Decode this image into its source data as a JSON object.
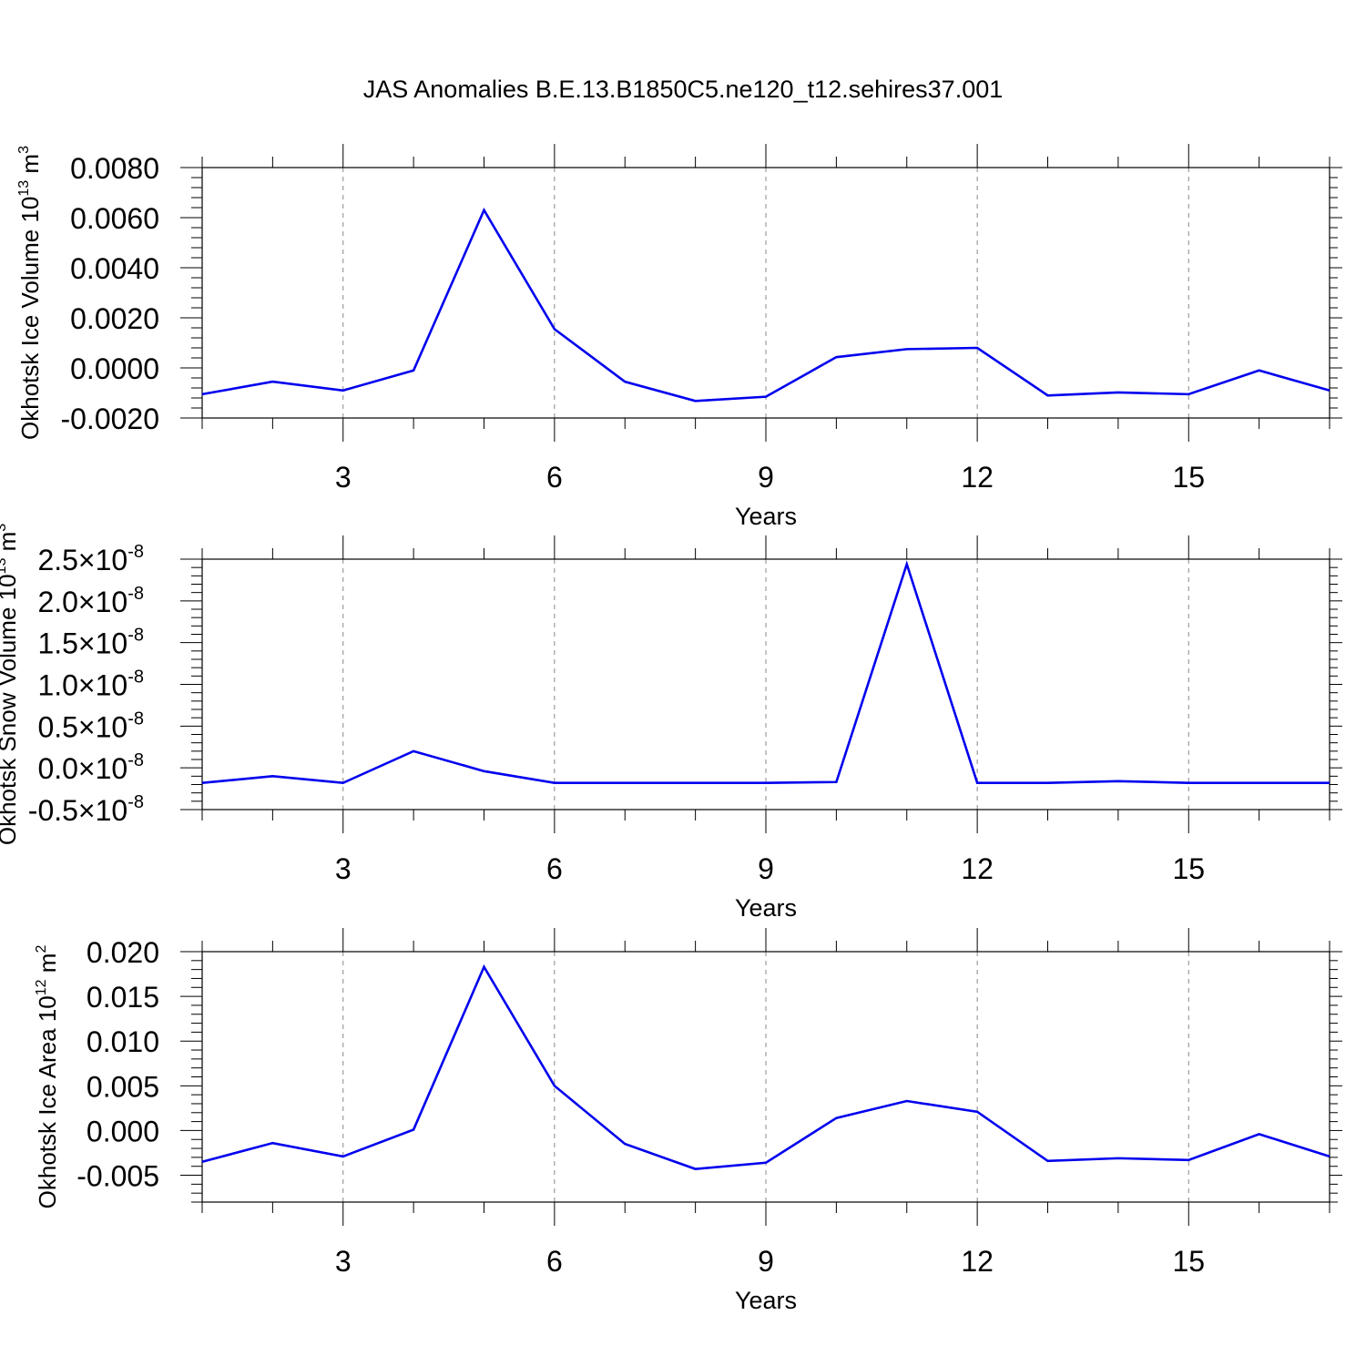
{
  "title": "JAS Anomalies B.E.13.B1850C5.ne120_t12.sehires37.001",
  "colors": {
    "line": "#0000ee",
    "axis": "#000000",
    "grid": "#888888"
  },
  "chart_data": [
    {
      "type": "line",
      "ylabel": "Okhotsk Ice Volume 10",
      "ylabel_exp": "13",
      "ylabel_unit": " m",
      "ylabel_unit_exp": "3",
      "xlabel": "Years",
      "xlim": [
        1,
        17
      ],
      "ylim": [
        -0.002,
        0.008
      ],
      "xticks": [
        3,
        6,
        9,
        12,
        15
      ],
      "xtick_labels": [
        "3",
        "6",
        "9",
        "12",
        "15"
      ],
      "yticks": [
        -0.002,
        0.0,
        0.002,
        0.004,
        0.006,
        0.008
      ],
      "ytick_labels": [
        "-0.0020",
        "0.0000",
        "0.0020",
        "0.0040",
        "0.0060",
        "0.0080"
      ],
      "ytick_exp_labels": null,
      "grid": "vertical dashed at major x ticks",
      "x": [
        1,
        2,
        3,
        4,
        5,
        6,
        7,
        8,
        9,
        10,
        11,
        12,
        13,
        14,
        15,
        16,
        17
      ],
      "series": [
        {
          "values": [
            -0.00105,
            -0.00055,
            -0.0009,
            -0.0001,
            0.0063,
            0.00155,
            -0.00055,
            -0.00132,
            -0.00115,
            0.00043,
            0.00075,
            0.0008,
            -0.0011,
            -0.00098,
            -0.00105,
            -0.0001,
            -0.0009
          ]
        }
      ]
    },
    {
      "type": "line",
      "ylabel": "Okhotsk Snow Volume 10",
      "ylabel_exp": "13",
      "ylabel_unit": " m",
      "ylabel_unit_exp": "3",
      "xlabel": "Years",
      "xlim": [
        1,
        17
      ],
      "ylim": [
        -5e-09,
        2.5e-08
      ],
      "xticks": [
        3,
        6,
        9,
        12,
        15
      ],
      "xtick_labels": [
        "3",
        "6",
        "9",
        "12",
        "15"
      ],
      "yticks": [
        -5e-09,
        0.0,
        5e-09,
        1e-08,
        1.5e-08,
        2e-08,
        2.5e-08
      ],
      "ytick_labels": [
        "-0.5",
        "0.0",
        "0.5",
        "1.0",
        "1.5",
        "2.0",
        "2.5"
      ],
      "ytick_times": "×10",
      "ytick_exp_labels": "-8",
      "grid": "vertical dashed at major x ticks",
      "x": [
        1,
        2,
        3,
        4,
        5,
        6,
        7,
        8,
        9,
        10,
        11,
        12,
        13,
        14,
        15,
        16,
        17
      ],
      "series": [
        {
          "values": [
            -1.8e-09,
            -1e-09,
            -1.8e-09,
            2e-09,
            -4e-10,
            -1.8e-09,
            -1.8e-09,
            -1.8e-09,
            -1.8e-09,
            -1.7e-09,
            2.44e-08,
            -1.8e-09,
            -1.8e-09,
            -1.6e-09,
            -1.8e-09,
            -1.8e-09,
            -1.8e-09
          ]
        }
      ]
    },
    {
      "type": "line",
      "ylabel": "Okhotsk Ice Area 10",
      "ylabel_exp": "12",
      "ylabel_unit": " m",
      "ylabel_unit_exp": "2",
      "xlabel": "Years",
      "xlim": [
        1,
        17
      ],
      "ylim": [
        -0.008,
        0.02
      ],
      "xticks": [
        3,
        6,
        9,
        12,
        15
      ],
      "xtick_labels": [
        "3",
        "6",
        "9",
        "12",
        "15"
      ],
      "yticks": [
        -0.005,
        0.0,
        0.005,
        0.01,
        0.015,
        0.02
      ],
      "ytick_labels": [
        "-0.005",
        "0.000",
        "0.005",
        "0.010",
        "0.015",
        "0.020"
      ],
      "ytick_exp_labels": null,
      "grid": "vertical dashed at major x ticks",
      "x": [
        1,
        2,
        3,
        4,
        5,
        6,
        7,
        8,
        9,
        10,
        11,
        12,
        13,
        14,
        15,
        16,
        17
      ],
      "series": [
        {
          "values": [
            -0.0035,
            -0.0014,
            -0.0029,
            0.0001,
            0.0183,
            0.005,
            -0.0015,
            -0.0043,
            -0.0036,
            0.0014,
            0.0033,
            0.0021,
            -0.0034,
            -0.0031,
            -0.0033,
            -0.0004,
            -0.0029
          ]
        }
      ]
    }
  ]
}
